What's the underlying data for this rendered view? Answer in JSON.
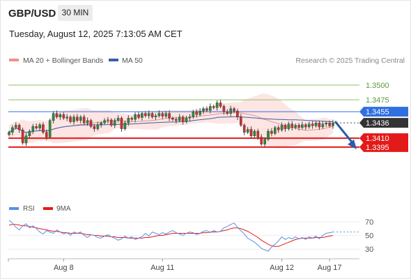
{
  "header": {
    "symbol": "GBP/USD",
    "timeframe": "30 MIN",
    "datetime": "Tuesday, August 12, 2025 7:13:05 AM CET"
  },
  "chart_data": [
    {
      "type": "candlestick",
      "legend": [
        {
          "name": "MA 20 + Bollinger Bands",
          "color": "#f0908a"
        },
        {
          "name": "MA 50",
          "color": "#3a5fa8"
        }
      ],
      "credit": "Research © 2025 Trading Central",
      "ylim": [
        1.3318,
        1.3526
      ],
      "levels": [
        {
          "label": "1.3500",
          "value": 1.35,
          "color": "#8cc26a",
          "kind": "target",
          "label_bg": "#ffffff",
          "label_fg": "#5a9a3a"
        },
        {
          "label": "1.3475",
          "value": 1.3475,
          "color": "#8cc26a",
          "kind": "target",
          "label_bg": "#ffffff",
          "label_fg": "#5a9a3a"
        },
        {
          "label": "1.3455",
          "value": 1.3455,
          "color": "#2f6fe0",
          "kind": "pivot",
          "label_bg": "#2f6fe0",
          "label_fg": "#ffffff"
        },
        {
          "label": "1.3436",
          "value": 1.3436,
          "color": "#444444",
          "kind": "last",
          "label_bg": "#333333",
          "label_fg": "#ffffff"
        },
        {
          "label": "1.3410",
          "value": 1.341,
          "color": "#e31a1a",
          "kind": "support",
          "label_bg": "#e31a1a",
          "label_fg": "#ffffff"
        },
        {
          "label": "1.3395",
          "value": 1.3395,
          "color": "#e31a1a",
          "kind": "support",
          "label_bg": "#e31a1a",
          "label_fg": "#ffffff"
        }
      ],
      "x_ticks": [
        "Aug 8",
        "Aug 11",
        "Aug 12",
        "Aug 17"
      ],
      "x_tick_positions": [
        16,
        45,
        80,
        94
      ],
      "bar_count": 96,
      "candles_close": [
        1.342,
        1.3428,
        1.3432,
        1.3424,
        1.3402,
        1.3414,
        1.3422,
        1.343,
        1.3427,
        1.3433,
        1.342,
        1.3412,
        1.344,
        1.3452,
        1.3446,
        1.345,
        1.3444,
        1.3446,
        1.3438,
        1.3446,
        1.344,
        1.3446,
        1.3436,
        1.344,
        1.343,
        1.3426,
        1.3433,
        1.3436,
        1.344,
        1.3441,
        1.3432,
        1.344,
        1.3444,
        1.3426,
        1.3436,
        1.3444,
        1.3442,
        1.345,
        1.3445,
        1.3452,
        1.3448,
        1.3452,
        1.3446,
        1.3448,
        1.3452,
        1.3447,
        1.3452,
        1.3444,
        1.3442,
        1.344,
        1.3446,
        1.3438,
        1.3444,
        1.3446,
        1.3455,
        1.345,
        1.3456,
        1.346,
        1.3457,
        1.3464,
        1.3462,
        1.347,
        1.3464,
        1.3455,
        1.3452,
        1.346,
        1.3456,
        1.3446,
        1.3432,
        1.342,
        1.3425,
        1.3414,
        1.3422,
        1.3412,
        1.34,
        1.3408,
        1.3422,
        1.3418,
        1.3428,
        1.3424,
        1.3432,
        1.3426,
        1.3434,
        1.3428,
        1.3432,
        1.3428,
        1.3433,
        1.3429,
        1.3434,
        1.3431,
        1.3436,
        1.3429,
        1.3434,
        1.3436,
        1.3431,
        1.3436
      ]
    },
    {
      "type": "line",
      "legend": [
        {
          "name": "RSI",
          "color": "#5b8ee6"
        },
        {
          "name": "9MA",
          "color": "#e31a1a"
        }
      ],
      "ylim": [
        18,
        82
      ],
      "y_ticks": [
        70,
        50,
        30
      ],
      "rsi": [
        72,
        68,
        62,
        58,
        64,
        67,
        61,
        64,
        60,
        55,
        52,
        57,
        55,
        53,
        58,
        55,
        52,
        54,
        50,
        55,
        53,
        55,
        50,
        47,
        51,
        50,
        47,
        46,
        49,
        51,
        48,
        46,
        43,
        45,
        49,
        46,
        48,
        44,
        46,
        48,
        53,
        49,
        55,
        53,
        51,
        54,
        52,
        55,
        57,
        54,
        52,
        50,
        53,
        55,
        54,
        51,
        53,
        56,
        57,
        54,
        57,
        55,
        56,
        61,
        63,
        66,
        68,
        62,
        57,
        52,
        46,
        43,
        40,
        36,
        31,
        29,
        27,
        33,
        37,
        42,
        48,
        44,
        47,
        45,
        48,
        45,
        47,
        44,
        48,
        46,
        49,
        45,
        50,
        53,
        54,
        55
      ],
      "ma9": [
        65,
        66,
        66,
        65,
        64,
        64,
        63,
        62,
        61,
        60,
        59,
        58,
        57,
        56,
        56,
        55,
        54,
        54,
        53,
        53,
        53,
        53,
        52,
        51,
        51,
        50,
        50,
        49,
        49,
        49,
        48,
        48,
        47,
        47,
        47,
        46,
        46,
        46,
        46,
        46,
        47,
        47,
        48,
        49,
        50,
        50,
        51,
        52,
        53,
        53,
        53,
        53,
        53,
        53,
        53,
        53,
        53,
        54,
        54,
        55,
        55,
        55,
        56,
        57,
        58,
        60,
        61,
        61,
        60,
        58,
        56,
        53,
        50,
        47,
        43,
        40,
        37,
        35,
        34,
        34,
        36,
        38,
        40,
        42,
        44,
        45,
        46,
        46,
        46,
        46,
        47,
        47,
        47,
        48,
        49,
        50
      ]
    }
  ]
}
